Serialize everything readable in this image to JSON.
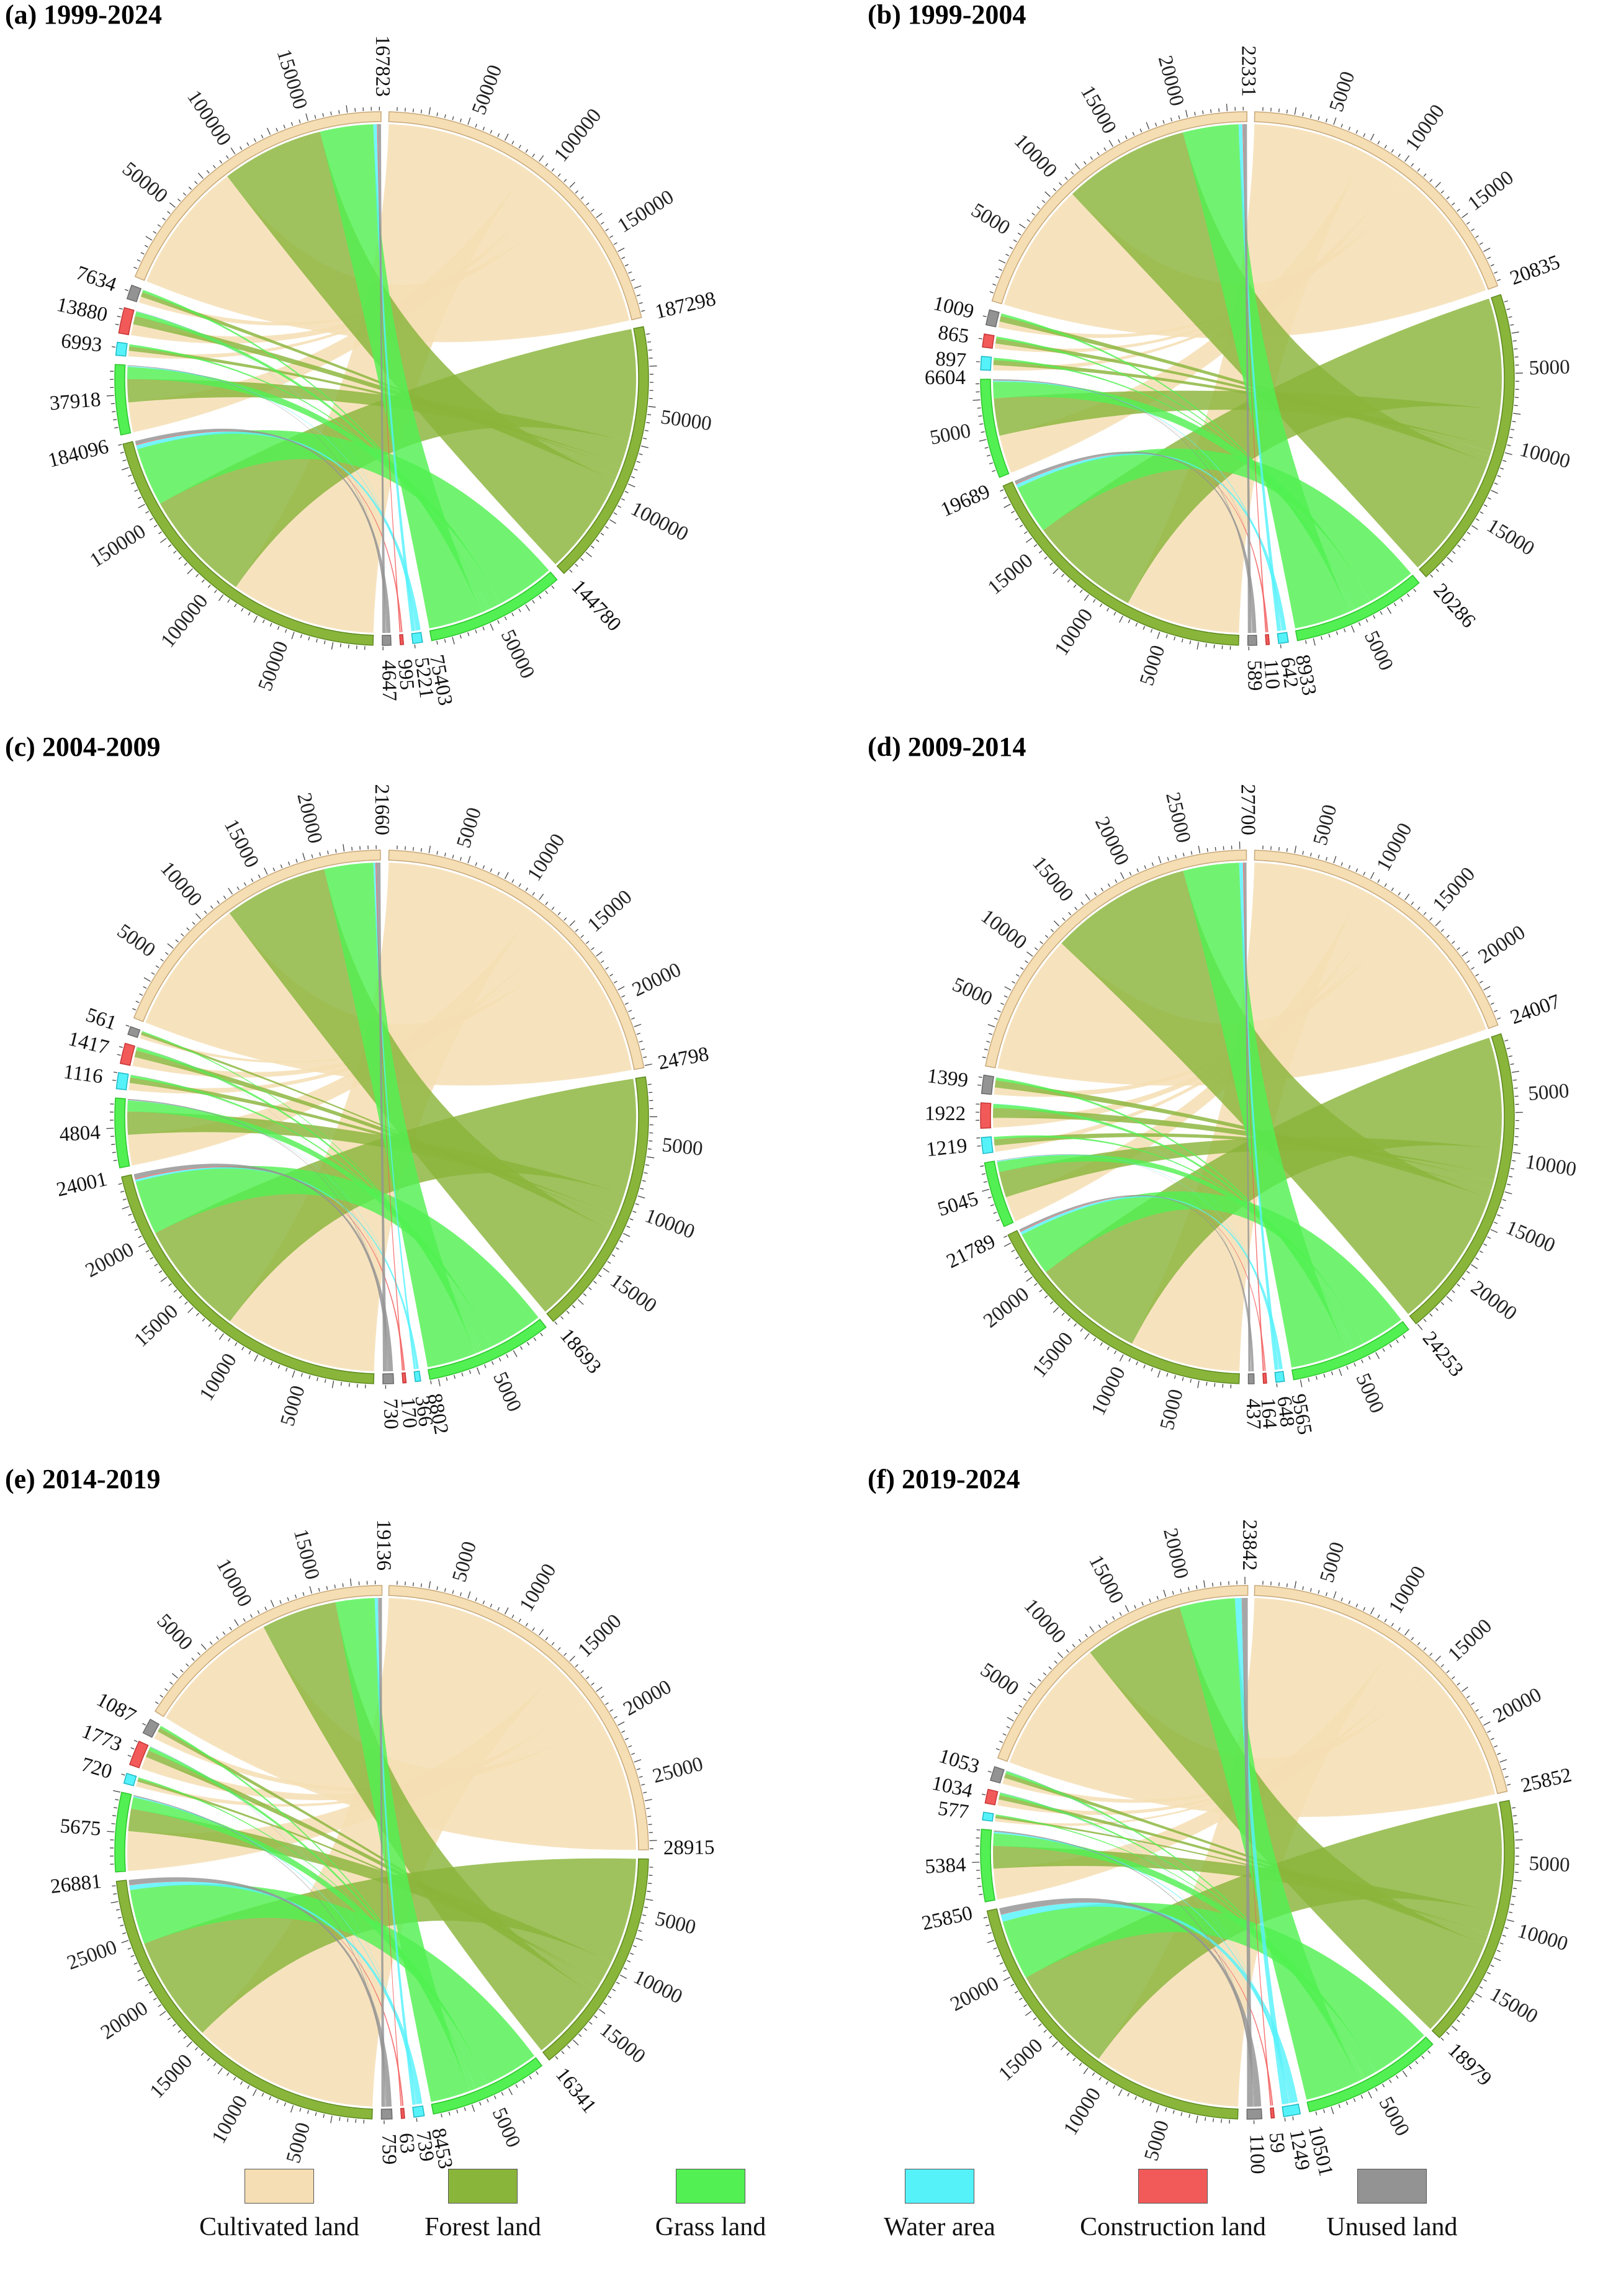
{
  "chart_data": [
    {
      "type": "chord",
      "title": "(a) 1999-2024",
      "categories": [
        "Cultivated land",
        "Forest land",
        "Grass land",
        "Water area",
        "Construction land",
        "Unused land"
      ],
      "totals": [
        187298,
        144780,
        75403,
        5221,
        995,
        4647
      ],
      "flows_to": [
        167823,
        184096,
        37918,
        6993,
        13880,
        7634
      ],
      "ticks": [
        [
          "50000",
          "100000",
          "150000",
          "187298"
        ],
        [
          "50000",
          "100000",
          "144780"
        ],
        [
          "50000",
          "75403"
        ],
        [
          "5221"
        ],
        [
          "995"
        ],
        [
          "4647"
        ],
        [
          "50000",
          "100000",
          "150000",
          "167823"
        ],
        [
          "50000",
          "100000",
          "150000",
          "184096"
        ],
        [
          "37918"
        ],
        [
          "6993"
        ],
        [
          "13880"
        ],
        [
          "7634"
        ]
      ]
    },
    {
      "type": "chord",
      "title": "(b) 1999-2004",
      "categories": [
        "Cultivated land",
        "Forest land",
        "Grass land",
        "Water area",
        "Construction land",
        "Unused land"
      ],
      "totals": [
        20835,
        20286,
        8933,
        642,
        110,
        589
      ],
      "flows_to": [
        22331,
        19689,
        6604,
        897,
        865,
        1009
      ],
      "ticks": [
        [
          "5000",
          "10000",
          "15000",
          "20835"
        ],
        [
          "5000",
          "10000",
          "15000",
          "20286"
        ],
        [
          "5000",
          "8933"
        ],
        [
          "642"
        ],
        [
          "110"
        ],
        [
          "589"
        ],
        [
          "5000",
          "10000",
          "15000",
          "20000",
          "22331"
        ],
        [
          "5000",
          "10000",
          "15000",
          "19689"
        ],
        [
          "5000",
          "6604"
        ],
        [
          "897"
        ],
        [
          "865"
        ],
        [
          "1009"
        ]
      ]
    },
    {
      "type": "chord",
      "title": "(c) 2004-2009",
      "categories": [
        "Cultivated land",
        "Forest land",
        "Grass land",
        "Water area",
        "Construction land",
        "Unused land"
      ],
      "totals": [
        24798,
        18693,
        8802,
        366,
        170,
        730
      ],
      "flows_to": [
        21660,
        24001,
        4804,
        1116,
        1417,
        561
      ],
      "ticks": [
        [
          "5000",
          "10000",
          "15000",
          "20000",
          "24798"
        ],
        [
          "5000",
          "10000",
          "15000",
          "18693"
        ],
        [
          "5000",
          "8802"
        ],
        [
          "366"
        ],
        [
          "170"
        ],
        [
          "730"
        ],
        [
          "5000",
          "10000",
          "15000",
          "20000",
          "21660"
        ],
        [
          "5000",
          "10000",
          "15000",
          "20000",
          "24001"
        ],
        [
          "4804"
        ],
        [
          "1116"
        ],
        [
          "1417"
        ],
        [
          "561"
        ]
      ]
    },
    {
      "type": "chord",
      "title": "(d) 2009-2014",
      "categories": [
        "Cultivated land",
        "Forest land",
        "Grass land",
        "Water area",
        "Construction land",
        "Unused land"
      ],
      "totals": [
        24007,
        24253,
        9565,
        648,
        164,
        437
      ],
      "flows_to": [
        27700,
        21789,
        5045,
        1219,
        1922,
        1399
      ],
      "ticks": [
        [
          "5000",
          "10000",
          "15000",
          "20000",
          "24007"
        ],
        [
          "5000",
          "10000",
          "15000",
          "20000",
          "24253"
        ],
        [
          "5000",
          "9565"
        ],
        [
          "648"
        ],
        [
          "164"
        ],
        [
          "437"
        ],
        [
          "5000",
          "10000",
          "15000",
          "20000",
          "25000",
          "27700"
        ],
        [
          "5000",
          "10000",
          "15000",
          "20000",
          "21789"
        ],
        [
          "5045"
        ],
        [
          "1219"
        ],
        [
          "1922"
        ],
        [
          "1399"
        ]
      ]
    },
    {
      "type": "chord",
      "title": "(e) 2014-2019",
      "categories": [
        "Cultivated land",
        "Forest land",
        "Grass land",
        "Water area",
        "Construction land",
        "Unused land"
      ],
      "totals": [
        28915,
        16341,
        8453,
        739,
        63,
        759
      ],
      "flows_to": [
        19136,
        26881,
        5675,
        720,
        1773,
        1087
      ],
      "ticks": [
        [
          "5000",
          "10000",
          "15000",
          "20000",
          "25000",
          "28915"
        ],
        [
          "5000",
          "10000",
          "15000",
          "16341"
        ],
        [
          "5000",
          "8453"
        ],
        [
          "739"
        ],
        [
          "63"
        ],
        [
          "759"
        ],
        [
          "5000",
          "10000",
          "15000",
          "19136"
        ],
        [
          "5000",
          "10000",
          "15000",
          "20000",
          "25000",
          "26881"
        ],
        [
          "5675"
        ],
        [
          "720"
        ],
        [
          "1773"
        ],
        [
          "1087"
        ]
      ]
    },
    {
      "type": "chord",
      "title": "(f) 2019-2024",
      "categories": [
        "Cultivated land",
        "Forest land",
        "Grass land",
        "Water area",
        "Construction land",
        "Unused land"
      ],
      "totals": [
        25852,
        18979,
        10501,
        1249,
        59,
        1100
      ],
      "flows_to": [
        23842,
        25850,
        5384,
        577,
        1034,
        1053
      ],
      "ticks": [
        [
          "5000",
          "10000",
          "15000",
          "20000",
          "25852"
        ],
        [
          "5000",
          "10000",
          "15000",
          "18979"
        ],
        [
          "5000",
          "10501"
        ],
        [
          "1249"
        ],
        [
          "59"
        ],
        [
          "1100"
        ],
        [
          "5000",
          "10000",
          "15000",
          "20000",
          "23842"
        ],
        [
          "5000",
          "10000",
          "15000",
          "20000",
          "25850"
        ],
        [
          "5384"
        ],
        [
          "577"
        ],
        [
          "1034"
        ],
        [
          "1053"
        ]
      ]
    }
  ],
  "colors": {
    "Cultivated land": "#f5deb3",
    "Forest land": "#8ab53b",
    "Grass land": "#52f052",
    "Water area": "#55f2fa",
    "Construction land": "#f25a5a",
    "Unused land": "#939393"
  },
  "legend": [
    {
      "label": "Cultivated land",
      "color": "#f5deb3"
    },
    {
      "label": "Forest land",
      "color": "#8ab53b"
    },
    {
      "label": "Grass land",
      "color": "#52f052"
    },
    {
      "label": "Water area",
      "color": "#55f2fa"
    },
    {
      "label": "Construction land",
      "color": "#f25a5a"
    },
    {
      "label": "Unused land",
      "color": "#939393"
    }
  ]
}
